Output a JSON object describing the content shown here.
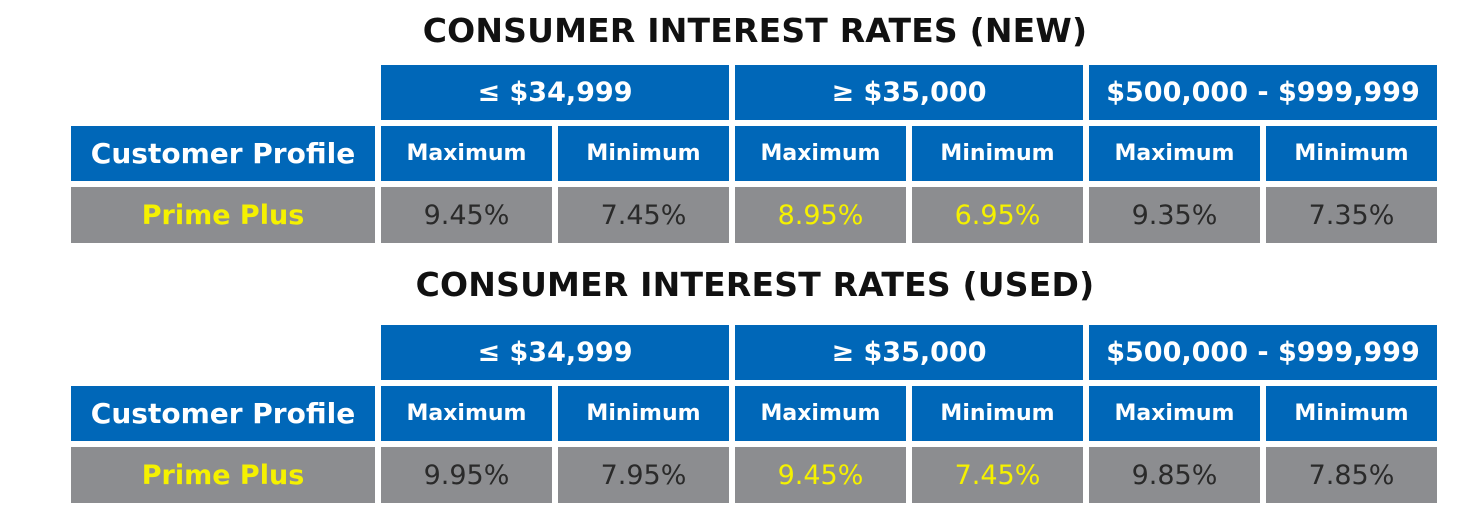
{
  "tables": [
    {
      "title": "CONSUMER INTEREST RATES (NEW)",
      "ranges": [
        "≤ $34,999",
        "≥ $35,000",
        "$500,000 - $999,999"
      ],
      "profile_header": "Customer Profile",
      "subheaders": [
        "Maximum",
        "Minimum",
        "Maximum",
        "Minimum",
        "Maximum",
        "Minimum"
      ],
      "rows": [
        {
          "profile": "Prime Plus",
          "values": [
            "9.45%",
            "7.45%",
            "8.95%",
            "6.95%",
            "9.35%",
            "7.35%"
          ]
        }
      ]
    },
    {
      "title": "CONSUMER INTEREST RATES (USED)",
      "ranges": [
        "≤ $34,999",
        "≥ $35,000",
        "$500,000 - $999,999"
      ],
      "profile_header": "Customer Profile",
      "subheaders": [
        "Maximum",
        "Minimum",
        "Maximum",
        "Minimum",
        "Maximum",
        "Minimum"
      ],
      "rows": [
        {
          "profile": "Prime Plus",
          "values": [
            "9.95%",
            "7.95%",
            "9.45%",
            "7.45%",
            "9.85%",
            "7.85%"
          ]
        }
      ]
    }
  ],
  "colors": {
    "header_blue": "#0067b8",
    "row_gray": "#8c8d90",
    "highlight_yellow": "#f5f100"
  }
}
